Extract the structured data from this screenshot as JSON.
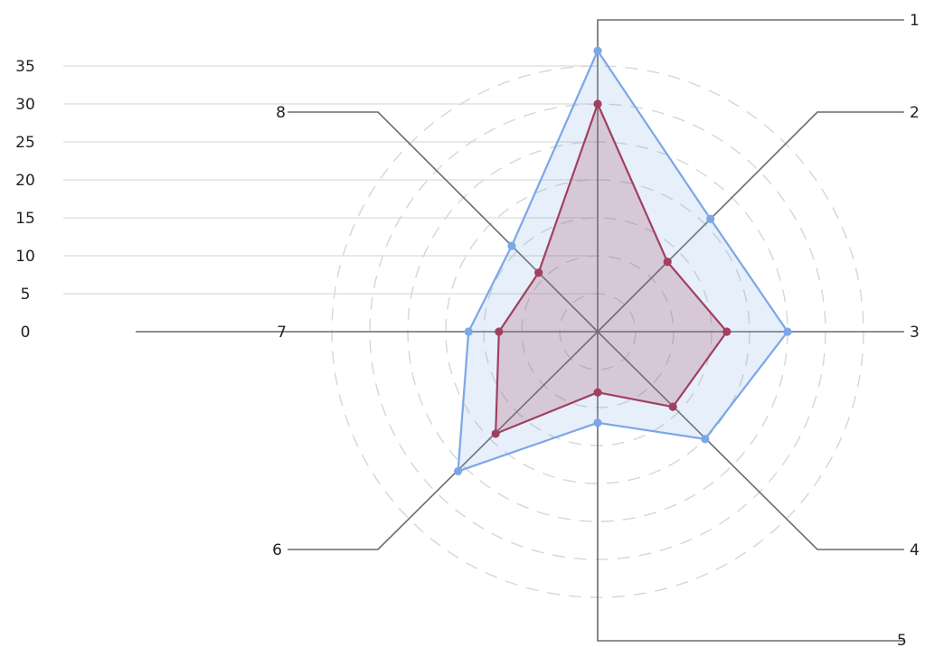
{
  "chart_data": {
    "type": "radar",
    "axes": [
      "1",
      "2",
      "3",
      "4",
      "5",
      "6",
      "7",
      "8"
    ],
    "y_ticks": [
      0,
      5,
      10,
      15,
      20,
      25,
      30,
      35
    ],
    "rmax": 35,
    "series": [
      {
        "values": [
          37,
          21,
          25,
          20,
          12,
          26,
          17,
          16
        ],
        "color": "#7ba7e6",
        "fill": "rgba(123,167,230,0.18)"
      },
      {
        "values": [
          30,
          13,
          17,
          14,
          8,
          19,
          13,
          11
        ],
        "color": "#a0405f",
        "fill": "rgba(160,64,95,0.22)"
      }
    ]
  }
}
